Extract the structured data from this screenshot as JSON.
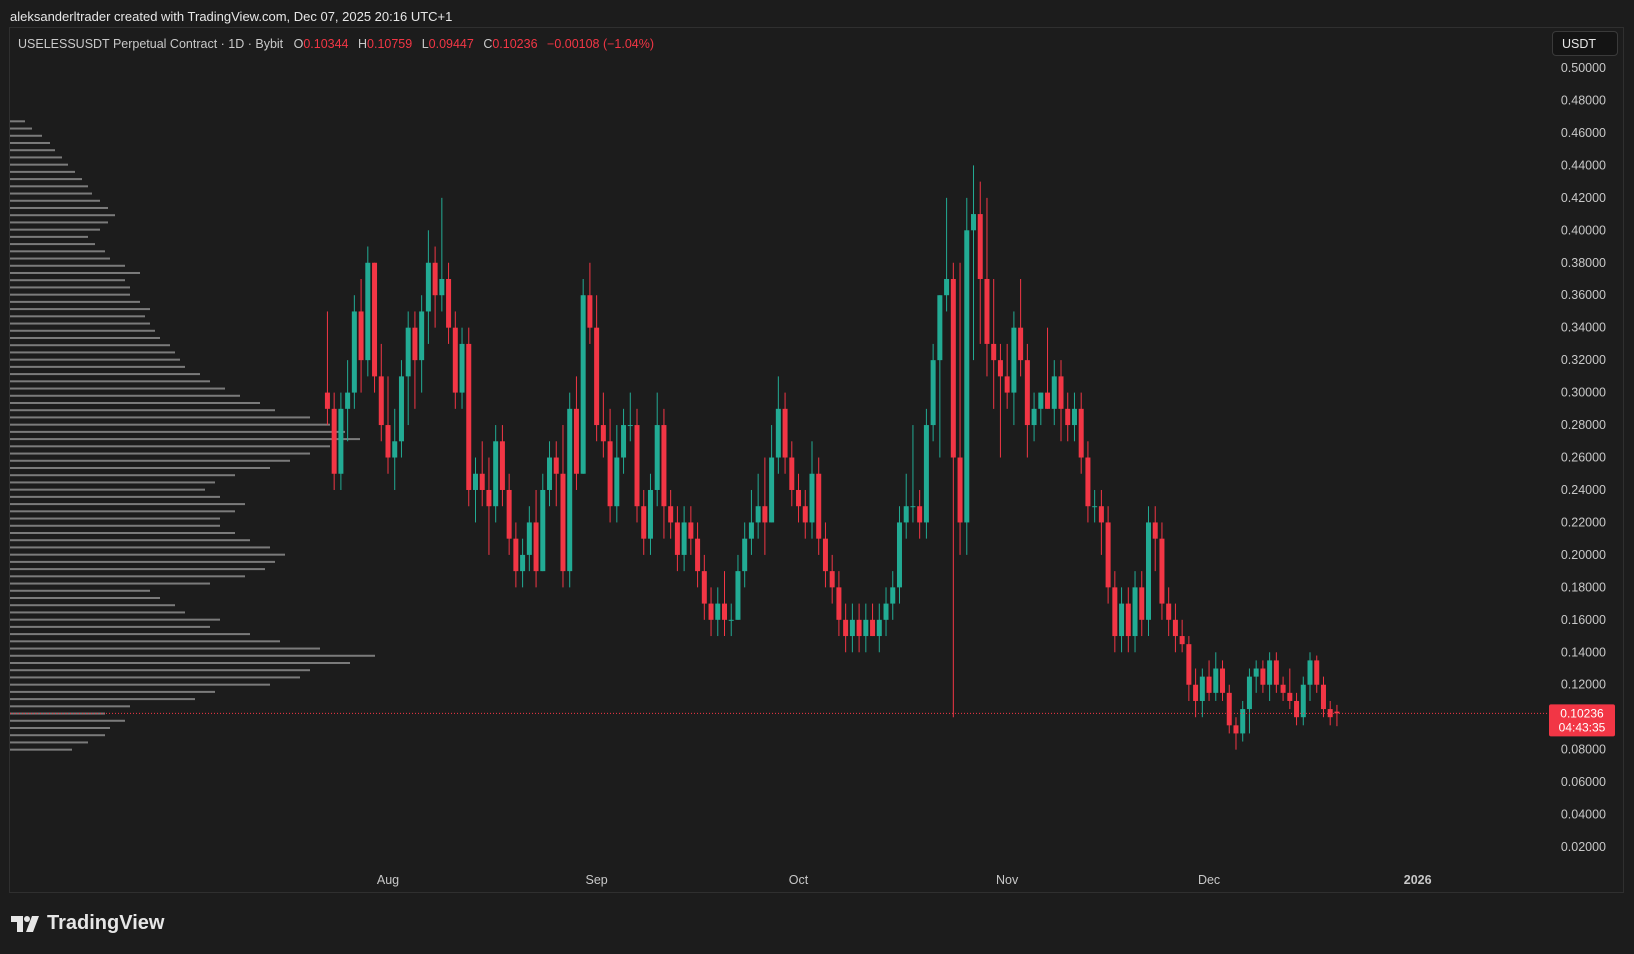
{
  "header": {
    "author_line": "aleksanderltrader created with TradingView.com, Dec 07, 2025 20:16 UTC+1"
  },
  "legend": {
    "symbol": "USELESSUSDT Perpetual Contract · 1D · Bybit",
    "o_label": "O",
    "o_value": "0.10344",
    "h_label": "H",
    "h_value": "0.10759",
    "l_label": "L",
    "l_value": "0.09447",
    "c_label": "C",
    "c_value": "0.10236",
    "change": "−0.00108 (−1.04%)"
  },
  "currency_button": "USDT",
  "price_label": {
    "price": "0.10236",
    "countdown": "04:43:35"
  },
  "branding": "TradingView",
  "colors": {
    "up": "#22ab94",
    "down": "#f23645",
    "background": "#1c1c1c",
    "axis_text": "#c8c8c8",
    "volume_profile": "#9b9b9b"
  },
  "chart_data": {
    "type": "candlestick",
    "symbol": "USELESSUSDT",
    "interval": "1D",
    "ylim": [
      0.0,
      0.51
    ],
    "y_ticks": [
      "0.50000",
      "0.48000",
      "0.46000",
      "0.44000",
      "0.42000",
      "0.40000",
      "0.38000",
      "0.36000",
      "0.34000",
      "0.32000",
      "0.30000",
      "0.28000",
      "0.26000",
      "0.24000",
      "0.22000",
      "0.20000",
      "0.18000",
      "0.16000",
      "0.14000",
      "0.12000",
      "0.10000",
      "0.08000",
      "0.06000",
      "0.04000",
      "0.02000"
    ],
    "x_ticks": [
      {
        "label": "Aug",
        "day": 33
      },
      {
        "label": "Sep",
        "day": 64
      },
      {
        "label": "Oct",
        "day": 94
      },
      {
        "label": "Nov",
        "day": 125
      },
      {
        "label": "Dec",
        "day": 155
      },
      {
        "label": "2026",
        "day": 186
      }
    ],
    "last_price": 0.10236,
    "grid": false,
    "candles": [
      [
        0.3,
        0.35,
        0.28,
        0.29
      ],
      [
        0.29,
        0.3,
        0.24,
        0.25
      ],
      [
        0.25,
        0.3,
        0.24,
        0.29
      ],
      [
        0.29,
        0.32,
        0.27,
        0.3
      ],
      [
        0.3,
        0.36,
        0.29,
        0.35
      ],
      [
        0.35,
        0.37,
        0.3,
        0.32
      ],
      [
        0.32,
        0.39,
        0.31,
        0.38
      ],
      [
        0.38,
        0.38,
        0.3,
        0.31
      ],
      [
        0.31,
        0.33,
        0.27,
        0.28
      ],
      [
        0.28,
        0.31,
        0.25,
        0.26
      ],
      [
        0.26,
        0.29,
        0.24,
        0.27
      ],
      [
        0.27,
        0.32,
        0.26,
        0.31
      ],
      [
        0.31,
        0.35,
        0.28,
        0.34
      ],
      [
        0.34,
        0.35,
        0.29,
        0.32
      ],
      [
        0.32,
        0.36,
        0.3,
        0.35
      ],
      [
        0.35,
        0.4,
        0.33,
        0.38
      ],
      [
        0.38,
        0.39,
        0.34,
        0.36
      ],
      [
        0.36,
        0.42,
        0.35,
        0.37
      ],
      [
        0.37,
        0.38,
        0.33,
        0.34
      ],
      [
        0.34,
        0.35,
        0.29,
        0.3
      ],
      [
        0.3,
        0.34,
        0.29,
        0.33
      ],
      [
        0.33,
        0.34,
        0.23,
        0.24
      ],
      [
        0.24,
        0.26,
        0.22,
        0.25
      ],
      [
        0.25,
        0.27,
        0.23,
        0.24
      ],
      [
        0.24,
        0.26,
        0.2,
        0.23
      ],
      [
        0.23,
        0.28,
        0.22,
        0.27
      ],
      [
        0.27,
        0.28,
        0.23,
        0.24
      ],
      [
        0.24,
        0.25,
        0.2,
        0.21
      ],
      [
        0.21,
        0.22,
        0.18,
        0.19
      ],
      [
        0.19,
        0.21,
        0.18,
        0.2
      ],
      [
        0.2,
        0.23,
        0.19,
        0.22
      ],
      [
        0.22,
        0.24,
        0.18,
        0.19
      ],
      [
        0.19,
        0.25,
        0.19,
        0.24
      ],
      [
        0.24,
        0.27,
        0.23,
        0.26
      ],
      [
        0.26,
        0.27,
        0.23,
        0.25
      ],
      [
        0.25,
        0.28,
        0.18,
        0.19
      ],
      [
        0.19,
        0.3,
        0.18,
        0.29
      ],
      [
        0.29,
        0.31,
        0.24,
        0.25
      ],
      [
        0.25,
        0.37,
        0.25,
        0.36
      ],
      [
        0.36,
        0.38,
        0.33,
        0.34
      ],
      [
        0.34,
        0.36,
        0.27,
        0.28
      ],
      [
        0.28,
        0.3,
        0.26,
        0.27
      ],
      [
        0.27,
        0.29,
        0.22,
        0.23
      ],
      [
        0.23,
        0.28,
        0.22,
        0.26
      ],
      [
        0.26,
        0.29,
        0.25,
        0.28
      ],
      [
        0.28,
        0.3,
        0.27,
        0.28
      ],
      [
        0.28,
        0.29,
        0.22,
        0.23
      ],
      [
        0.23,
        0.24,
        0.2,
        0.21
      ],
      [
        0.21,
        0.25,
        0.2,
        0.24
      ],
      [
        0.24,
        0.3,
        0.23,
        0.28
      ],
      [
        0.28,
        0.29,
        0.21,
        0.23
      ],
      [
        0.23,
        0.24,
        0.21,
        0.22
      ],
      [
        0.22,
        0.23,
        0.19,
        0.2
      ],
      [
        0.2,
        0.23,
        0.19,
        0.22
      ],
      [
        0.22,
        0.23,
        0.2,
        0.21
      ],
      [
        0.21,
        0.22,
        0.18,
        0.19
      ],
      [
        0.19,
        0.2,
        0.16,
        0.17
      ],
      [
        0.17,
        0.18,
        0.15,
        0.16
      ],
      [
        0.16,
        0.18,
        0.15,
        0.17
      ],
      [
        0.17,
        0.19,
        0.15,
        0.16
      ],
      [
        0.16,
        0.17,
        0.15,
        0.16
      ],
      [
        0.16,
        0.2,
        0.16,
        0.19
      ],
      [
        0.19,
        0.22,
        0.18,
        0.21
      ],
      [
        0.21,
        0.24,
        0.2,
        0.22
      ],
      [
        0.22,
        0.25,
        0.21,
        0.23
      ],
      [
        0.23,
        0.26,
        0.2,
        0.22
      ],
      [
        0.22,
        0.28,
        0.22,
        0.26
      ],
      [
        0.26,
        0.31,
        0.25,
        0.29
      ],
      [
        0.29,
        0.3,
        0.25,
        0.26
      ],
      [
        0.26,
        0.27,
        0.23,
        0.24
      ],
      [
        0.24,
        0.25,
        0.22,
        0.23
      ],
      [
        0.23,
        0.24,
        0.21,
        0.22
      ],
      [
        0.22,
        0.27,
        0.21,
        0.25
      ],
      [
        0.25,
        0.26,
        0.2,
        0.21
      ],
      [
        0.21,
        0.22,
        0.18,
        0.19
      ],
      [
        0.19,
        0.2,
        0.17,
        0.18
      ],
      [
        0.18,
        0.19,
        0.15,
        0.16
      ],
      [
        0.16,
        0.17,
        0.14,
        0.15
      ],
      [
        0.15,
        0.17,
        0.14,
        0.16
      ],
      [
        0.16,
        0.17,
        0.14,
        0.15
      ],
      [
        0.15,
        0.17,
        0.14,
        0.16
      ],
      [
        0.16,
        0.17,
        0.15,
        0.15
      ],
      [
        0.15,
        0.17,
        0.14,
        0.16
      ],
      [
        0.16,
        0.18,
        0.15,
        0.17
      ],
      [
        0.17,
        0.19,
        0.16,
        0.18
      ],
      [
        0.18,
        0.23,
        0.17,
        0.22
      ],
      [
        0.22,
        0.25,
        0.21,
        0.23
      ],
      [
        0.23,
        0.28,
        0.22,
        0.23
      ],
      [
        0.23,
        0.24,
        0.21,
        0.22
      ],
      [
        0.22,
        0.29,
        0.21,
        0.28
      ],
      [
        0.28,
        0.33,
        0.27,
        0.32
      ],
      [
        0.32,
        0.36,
        0.26,
        0.36
      ],
      [
        0.36,
        0.42,
        0.35,
        0.37
      ],
      [
        0.37,
        0.38,
        0.1,
        0.26
      ],
      [
        0.26,
        0.38,
        0.2,
        0.22
      ],
      [
        0.22,
        0.42,
        0.2,
        0.4
      ],
      [
        0.4,
        0.44,
        0.32,
        0.41
      ],
      [
        0.41,
        0.43,
        0.33,
        0.37
      ],
      [
        0.37,
        0.42,
        0.31,
        0.33
      ],
      [
        0.33,
        0.37,
        0.29,
        0.32
      ],
      [
        0.32,
        0.33,
        0.26,
        0.31
      ],
      [
        0.31,
        0.33,
        0.29,
        0.3
      ],
      [
        0.3,
        0.35,
        0.28,
        0.34
      ],
      [
        0.34,
        0.37,
        0.31,
        0.32
      ],
      [
        0.32,
        0.33,
        0.26,
        0.28
      ],
      [
        0.28,
        0.3,
        0.27,
        0.29
      ],
      [
        0.29,
        0.3,
        0.28,
        0.3
      ],
      [
        0.3,
        0.34,
        0.29,
        0.29
      ],
      [
        0.29,
        0.32,
        0.28,
        0.31
      ],
      [
        0.31,
        0.32,
        0.27,
        0.29
      ],
      [
        0.29,
        0.3,
        0.27,
        0.28
      ],
      [
        0.28,
        0.3,
        0.27,
        0.29
      ],
      [
        0.29,
        0.3,
        0.25,
        0.26
      ],
      [
        0.26,
        0.27,
        0.22,
        0.23
      ],
      [
        0.23,
        0.24,
        0.22,
        0.23
      ],
      [
        0.23,
        0.24,
        0.2,
        0.22
      ],
      [
        0.22,
        0.23,
        0.17,
        0.18
      ],
      [
        0.18,
        0.19,
        0.14,
        0.15
      ],
      [
        0.15,
        0.18,
        0.14,
        0.17
      ],
      [
        0.17,
        0.18,
        0.14,
        0.15
      ],
      [
        0.15,
        0.19,
        0.14,
        0.18
      ],
      [
        0.18,
        0.19,
        0.15,
        0.16
      ],
      [
        0.16,
        0.23,
        0.15,
        0.22
      ],
      [
        0.22,
        0.23,
        0.19,
        0.21
      ],
      [
        0.21,
        0.22,
        0.16,
        0.17
      ],
      [
        0.17,
        0.18,
        0.15,
        0.16
      ],
      [
        0.16,
        0.17,
        0.14,
        0.15
      ],
      [
        0.15,
        0.16,
        0.14,
        0.145
      ],
      [
        0.145,
        0.15,
        0.11,
        0.12
      ],
      [
        0.12,
        0.13,
        0.1,
        0.11
      ],
      [
        0.11,
        0.13,
        0.1,
        0.125
      ],
      [
        0.125,
        0.135,
        0.11,
        0.115
      ],
      [
        0.115,
        0.14,
        0.11,
        0.13
      ],
      [
        0.13,
        0.135,
        0.11,
        0.115
      ],
      [
        0.115,
        0.12,
        0.09,
        0.095
      ],
      [
        0.095,
        0.1,
        0.08,
        0.09
      ],
      [
        0.09,
        0.11,
        0.085,
        0.105
      ],
      [
        0.105,
        0.13,
        0.09,
        0.125
      ],
      [
        0.125,
        0.135,
        0.115,
        0.13
      ],
      [
        0.13,
        0.135,
        0.115,
        0.12
      ],
      [
        0.12,
        0.14,
        0.11,
        0.135
      ],
      [
        0.135,
        0.14,
        0.115,
        0.12
      ],
      [
        0.12,
        0.125,
        0.11,
        0.115
      ],
      [
        0.115,
        0.13,
        0.105,
        0.11
      ],
      [
        0.11,
        0.115,
        0.095,
        0.1
      ],
      [
        0.1,
        0.125,
        0.095,
        0.12
      ],
      [
        0.12,
        0.14,
        0.11,
        0.135
      ],
      [
        0.135,
        0.138,
        0.115,
        0.12
      ],
      [
        0.12,
        0.125,
        0.1,
        0.105
      ],
      [
        0.105,
        0.11,
        0.095,
        0.1
      ],
      [
        0.10344,
        0.10759,
        0.09447,
        0.10236
      ]
    ],
    "volume_profile": {
      "price_start": 0.08,
      "price_step": 0.00445,
      "lengths": [
        62,
        78,
        95,
        100,
        115,
        95,
        120,
        185,
        205,
        260,
        290,
        300,
        340,
        365,
        310,
        270,
        240,
        200,
        210,
        175,
        165,
        150,
        140,
        200,
        235,
        255,
        265,
        275,
        260,
        240,
        225,
        210,
        210,
        225,
        235,
        210,
        195,
        205,
        225,
        260,
        280,
        300,
        320,
        350,
        335,
        320,
        300,
        265,
        250,
        230,
        215,
        200,
        190,
        175,
        170,
        165,
        160,
        150,
        145,
        140,
        135,
        140,
        130,
        120,
        120,
        115,
        130,
        115,
        100,
        95,
        85,
        78,
        90,
        98,
        105,
        98,
        90,
        82,
        78,
        72,
        65,
        58,
        52,
        45,
        40,
        32,
        22,
        15
      ]
    }
  }
}
